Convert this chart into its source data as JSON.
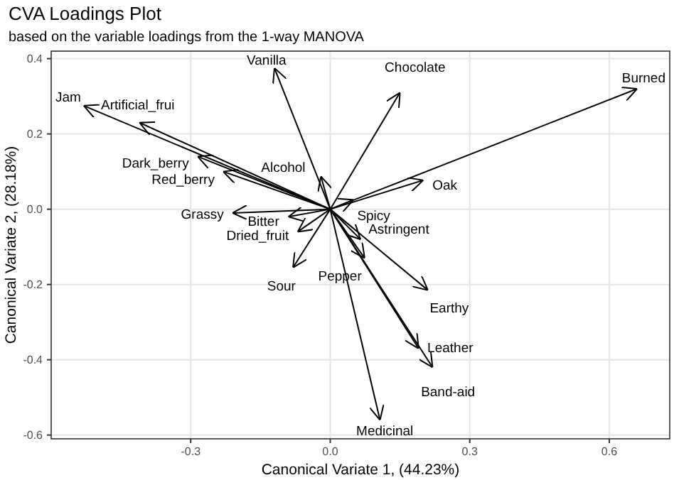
{
  "chart_data": {
    "type": "line",
    "title": "CVA Loadings Plot",
    "subtitle": "based on the variable loadings from the 1-way MANOVA",
    "xlabel": "Canonical Variate 1, (44.23%)",
    "ylabel": "Canonical Variate 2, (28.18%)",
    "xlim": [
      -0.6,
      0.73
    ],
    "ylim": [
      -0.61,
      0.42
    ],
    "xticks": [
      {
        "value": -0.3,
        "label": "-0.3"
      },
      {
        "value": 0,
        "label": "0.0"
      },
      {
        "value": 0.3,
        "label": "0.3"
      },
      {
        "value": 0.6,
        "label": "0.6"
      }
    ],
    "yticks": [
      {
        "value": -0.6,
        "label": "-0.6"
      },
      {
        "value": -0.4,
        "label": "-0.4"
      },
      {
        "value": -0.2,
        "label": "-0.2"
      },
      {
        "value": 0,
        "label": "0.0"
      },
      {
        "value": 0.2,
        "label": "0.2"
      },
      {
        "value": 0.4,
        "label": "0.4"
      }
    ],
    "grid": true,
    "series": [
      {
        "name": "Jam",
        "color": "#000000",
        "x": [
          0,
          -0.53
        ],
        "values": [
          0,
          0.275
        ]
      },
      {
        "name": "Artificial_frui",
        "color": "#000000",
        "x": [
          0,
          -0.41
        ],
        "values": [
          0,
          0.23
        ]
      },
      {
        "name": "Dark_berry",
        "color": "#000000",
        "x": [
          0,
          -0.285
        ],
        "values": [
          0,
          0.14
        ]
      },
      {
        "name": "Red_berry",
        "color": "#000000",
        "x": [
          0,
          -0.23
        ],
        "values": [
          0,
          0.1
        ]
      },
      {
        "name": "Grassy",
        "color": "#000000",
        "x": [
          0,
          -0.21
        ],
        "values": [
          0,
          -0.01
        ]
      },
      {
        "name": "Bitter",
        "color": "#000000",
        "x": [
          0,
          -0.09
        ],
        "values": [
          0,
          -0.02
        ]
      },
      {
        "name": "Dried_fruit",
        "color": "#000000",
        "x": [
          0,
          -0.07
        ],
        "values": [
          0,
          -0.06
        ]
      },
      {
        "name": "Sour",
        "color": "#000000",
        "x": [
          0,
          -0.08
        ],
        "values": [
          0,
          -0.155
        ]
      },
      {
        "name": "Spicy",
        "color": "#000000",
        "x": [
          0,
          0.05
        ],
        "values": [
          0,
          0.025
        ]
      },
      {
        "name": "Vanilla",
        "color": "#000000",
        "x": [
          0,
          -0.12
        ],
        "values": [
          0,
          0.375
        ]
      },
      {
        "name": "Chocolate",
        "color": "#000000",
        "x": [
          0,
          0.15
        ],
        "values": [
          0,
          0.31
        ]
      },
      {
        "name": "Alcohol",
        "color": "#000000",
        "x": [
          0,
          -0.02
        ],
        "values": [
          0,
          0.087
        ]
      },
      {
        "name": "Oak",
        "color": "#000000",
        "x": [
          0,
          0.2
        ],
        "values": [
          0,
          0.077
        ]
      },
      {
        "name": "Burned",
        "color": "#000000",
        "x": [
          0,
          0.66
        ],
        "values": [
          0,
          0.32
        ]
      },
      {
        "name": "Astringent",
        "color": "#000000",
        "x": [
          0,
          0.065
        ],
        "values": [
          0,
          -0.08
        ]
      },
      {
        "name": "Pepper",
        "color": "#000000",
        "x": [
          0,
          0.074
        ],
        "values": [
          0,
          -0.13
        ]
      },
      {
        "name": "Earthy",
        "color": "#000000",
        "x": [
          0,
          0.21
        ],
        "values": [
          0,
          -0.215
        ]
      },
      {
        "name": "Leather",
        "color": "#000000",
        "x": [
          0,
          0.19
        ],
        "values": [
          0,
          -0.37
        ]
      },
      {
        "name": "Band-aid",
        "color": "#000000",
        "x": [
          0,
          0.22
        ],
        "values": [
          0,
          -0.42
        ]
      },
      {
        "name": "Medicinal",
        "color": "#000000",
        "x": [
          0,
          0.107
        ],
        "values": [
          0,
          -0.56
        ]
      }
    ]
  }
}
